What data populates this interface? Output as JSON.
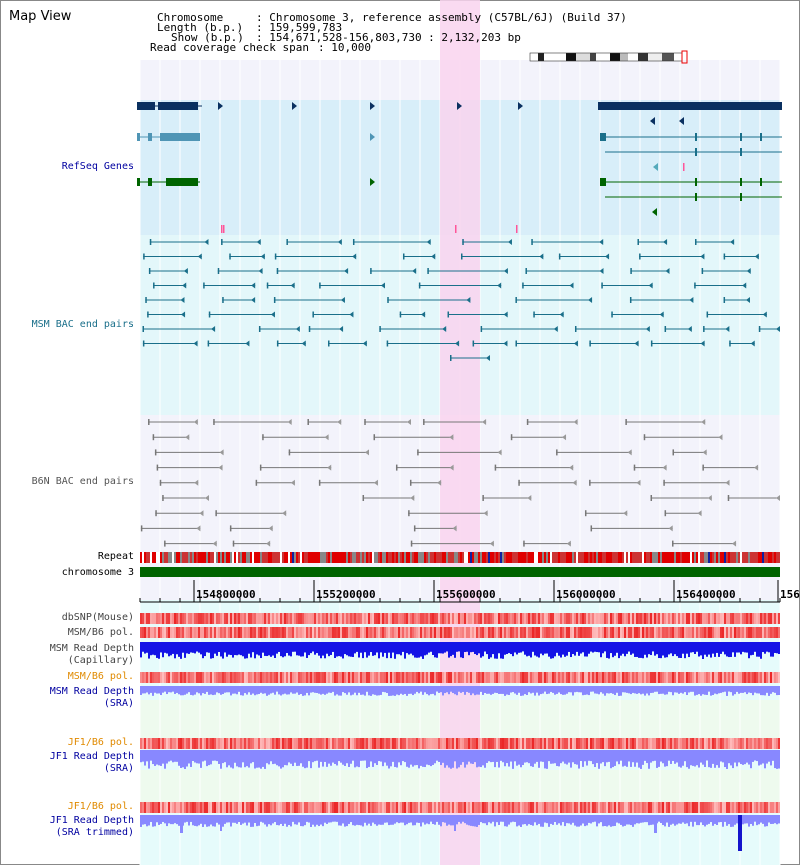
{
  "view": {
    "title": "Map View"
  },
  "header": {
    "chromosome_label": "Chromosome",
    "chromosome_value": ": Chromosome 3, reference assembly (C57BL/6J) (Build 37)",
    "length_label": "Length (b.p.)",
    "length_value": ": 159,599,783",
    "show_label": "Show (b.p.)",
    "show_value": ": 154,671,528-156,803,730 : 2,132,203 bp",
    "coverage_label": "Read coverage check span",
    "coverage_value": ": 10,000"
  },
  "tracks": {
    "refseq": "RefSeq Genes",
    "msm_bac": "MSM BAC end pairs",
    "b6n_bac": "B6N BAC end pairs",
    "repeat": "Repeat",
    "chromosome": "chromosome 3",
    "dbsnp": "dbSNP(Mouse)",
    "msm_b6_pol": "MSM/B6 pol.",
    "msm_depth_cap_1": "MSM Read Depth",
    "msm_depth_cap_2": "(Capillary)",
    "msm_b6_pol_2": "MSM/B6 pol.",
    "msm_depth_sra_1": "MSM Read Depth",
    "msm_depth_sra_2": "(SRA)",
    "jf1_b6_pol": "JF1/B6 pol.",
    "jf1_depth_sra_1": "JF1 Read Depth",
    "jf1_depth_sra_2": "(SRA)",
    "jf1_b6_pol_2": "JF1/B6 pol.",
    "jf1_depth_trim_1": "JF1 Read Depth",
    "jf1_depth_trim_2": "(SRA trimmed)"
  },
  "axis": {
    "ticks": [
      "154800000",
      "155200000",
      "155600000",
      "156000000",
      "156400000",
      "156"
    ]
  },
  "colors": {
    "highlight": "#f9d3ef",
    "refseq_bg": "#d8eef9",
    "msm_bg": "#e3f7fa",
    "gene_dark": "#0a3060",
    "gene_mid": "#4f95b5",
    "gene_green": "#006400",
    "msm_line": "#1a6f8a",
    "b6n_line": "#777777",
    "chrom_bar": "#006400",
    "depth_blue": "#1414e6",
    "depth_light": "#8888ff",
    "label_navy": "#0000a0",
    "label_teal": "#1a6f8a",
    "label_orange": "#e08a00"
  }
}
